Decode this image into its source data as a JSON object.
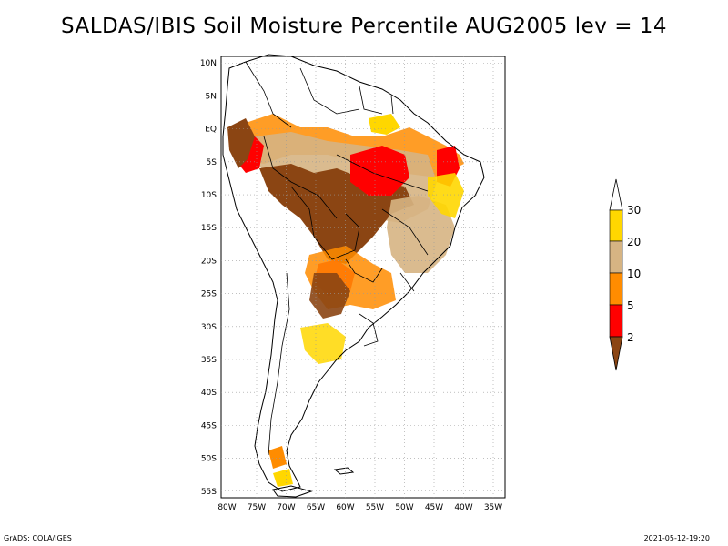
{
  "title": "SALDAS/IBIS Soil Moisture Percentile AUG2005 lev = 14",
  "map": {
    "lat_ticks": [
      "10N",
      "5N",
      "EQ",
      "5S",
      "10S",
      "15S",
      "20S",
      "25S",
      "30S",
      "35S",
      "40S",
      "45S",
      "50S",
      "55S"
    ],
    "lon_ticks": [
      "80W",
      "75W",
      "70W",
      "65W",
      "60W",
      "55W",
      "50W",
      "45W",
      "40W",
      "35W"
    ],
    "lat_range": [
      -56,
      11
    ],
    "lon_range": [
      -81,
      -33
    ],
    "grid": "dotted"
  },
  "colorbar": {
    "labels": [
      "30",
      "20",
      "10",
      "5",
      "2"
    ],
    "colors": {
      "above_30": "#ffffff",
      "c20_30": "#ffd700",
      "c10_20": "#d6b483",
      "c5_10": "#ff8c00",
      "c2_5": "#ff0000",
      "below_2": "#8b4513"
    }
  },
  "colors": {
    "dark_brown": "#8b4513",
    "red": "#ff0000",
    "orange": "#ff8c00",
    "tan": "#d6b483",
    "gold": "#ffd700",
    "outline": "#000000",
    "grid": "#9a9a9a"
  },
  "footer": {
    "left": "GrADS: COLA/IGES",
    "right": "2021-05-12-19:20"
  }
}
